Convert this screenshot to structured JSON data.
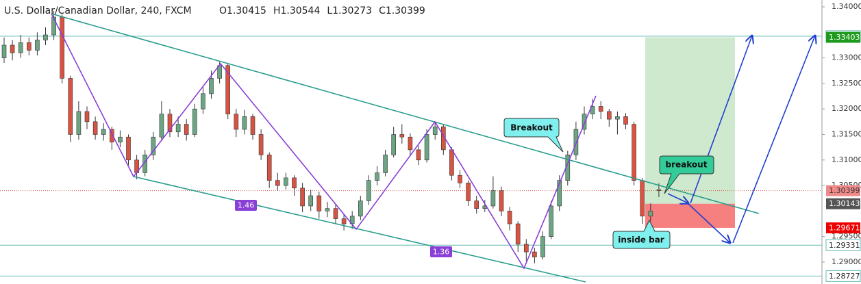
{
  "chart_data": {
    "type": "candlestick",
    "title": "U.S. Dollar/Canadian Dollar, 240, FXCM",
    "ohlc_prefixes": [
      "O",
      "H",
      "L",
      "C"
    ],
    "ylim": [
      1.28571,
      1.34134
    ],
    "yticks": [
      {
        "value": 1.34,
        "label": "1.34000"
      },
      {
        "value": 1.33,
        "label": "1.33000"
      },
      {
        "value": 1.325,
        "label": "1.32500"
      },
      {
        "value": 1.32,
        "label": "1.32000"
      },
      {
        "value": 1.315,
        "label": "1.31500"
      },
      {
        "value": 1.31,
        "label": "1.31000"
      },
      {
        "value": 1.305,
        "label": "1.30500"
      },
      {
        "value": 1.295,
        "label": "1.29500"
      },
      {
        "value": 1.29,
        "label": "1.29000"
      }
    ],
    "up_color": "#6ba583",
    "down_color": "#d75442",
    "series": [
      {
        "open": [
          1.33,
          1.3325,
          1.331,
          1.333,
          1.3315,
          1.3335,
          1.3345,
          1.338,
          1.326,
          1.315,
          1.3195,
          1.3175,
          1.315,
          1.316,
          1.3135,
          1.3145,
          1.31,
          1.3075,
          1.311,
          1.3145,
          1.319,
          1.3155,
          1.317,
          1.315,
          1.32,
          1.323,
          1.326,
          1.3285,
          1.319,
          1.316,
          1.3185,
          1.315,
          1.311,
          1.306,
          1.305,
          1.3065,
          1.3045,
          1.301,
          1.303,
          1.3,
          1.3005,
          1.2985,
          1.2975,
          1.299,
          1.302,
          1.306,
          1.3075,
          1.311,
          1.315,
          1.3145,
          1.312,
          1.31,
          1.315,
          1.3165,
          1.312,
          1.307,
          1.3055,
          1.302,
          1.3005,
          1.301,
          1.304,
          1.3,
          1.2975,
          1.2935,
          1.292,
          1.291,
          1.295,
          1.301,
          1.306,
          1.311,
          1.316,
          1.319,
          1.3205,
          1.3195,
          1.318,
          1.3185,
          1.317,
          1.306,
          1.299,
          1.30415
        ],
        "high": [
          1.334,
          1.3335,
          1.3345,
          1.334,
          1.335,
          1.336,
          1.3392,
          1.3385,
          1.3265,
          1.3215,
          1.3205,
          1.3185,
          1.3172,
          1.3165,
          1.3158,
          1.315,
          1.311,
          1.312,
          1.3155,
          1.3215,
          1.32,
          1.3185,
          1.318,
          1.321,
          1.3245,
          1.3275,
          1.3292,
          1.329,
          1.32,
          1.3198,
          1.319,
          1.316,
          1.3115,
          1.3075,
          1.3075,
          1.307,
          1.3055,
          1.3042,
          1.3038,
          1.3018,
          1.3012,
          1.2995,
          1.3,
          1.303,
          1.307,
          1.3088,
          1.312,
          1.3165,
          1.317,
          1.3152,
          1.3128,
          1.316,
          1.3175,
          1.317,
          1.3125,
          1.308,
          1.306,
          1.303,
          1.3022,
          1.3068,
          1.3048,
          1.3008,
          1.298,
          1.2945,
          1.2928,
          1.296,
          1.302,
          1.307,
          1.3118,
          1.3175,
          1.3205,
          1.322,
          1.3215,
          1.32,
          1.3195,
          1.3192,
          1.3175,
          1.3065,
          1.3015,
          1.30544
        ],
        "low": [
          1.329,
          1.3295,
          1.33,
          1.3305,
          1.3305,
          1.3325,
          1.3335,
          1.325,
          1.3135,
          1.314,
          1.316,
          1.314,
          1.3138,
          1.312,
          1.3125,
          1.309,
          1.3062,
          1.3068,
          1.31,
          1.314,
          1.3145,
          1.3145,
          1.3138,
          1.3145,
          1.319,
          1.322,
          1.325,
          1.318,
          1.3145,
          1.315,
          1.314,
          1.31,
          1.3045,
          1.304,
          1.3042,
          1.303,
          1.2998,
          1.3,
          1.2985,
          1.2988,
          1.2975,
          1.2962,
          1.2965,
          1.2982,
          1.3012,
          1.305,
          1.3068,
          1.3105,
          1.3132,
          1.311,
          1.309,
          1.3095,
          1.314,
          1.311,
          1.306,
          1.3045,
          1.301,
          1.2995,
          1.2998,
          1.3005,
          1.299,
          1.2962,
          1.292,
          1.2902,
          1.2898,
          1.2905,
          1.2945,
          1.3,
          1.305,
          1.31,
          1.315,
          1.318,
          1.318,
          1.3165,
          1.315,
          1.316,
          1.305,
          1.2975,
          1.298,
          1.30273
        ],
        "close": [
          1.3325,
          1.331,
          1.333,
          1.3315,
          1.3335,
          1.3345,
          1.338,
          1.326,
          1.315,
          1.3195,
          1.3175,
          1.315,
          1.316,
          1.3135,
          1.3145,
          1.31,
          1.3075,
          1.311,
          1.3145,
          1.319,
          1.3155,
          1.317,
          1.315,
          1.32,
          1.323,
          1.326,
          1.3285,
          1.319,
          1.316,
          1.3185,
          1.315,
          1.311,
          1.306,
          1.305,
          1.3065,
          1.3045,
          1.301,
          1.303,
          1.3,
          1.3005,
          1.2985,
          1.2975,
          1.299,
          1.302,
          1.306,
          1.3075,
          1.311,
          1.315,
          1.3145,
          1.312,
          1.31,
          1.315,
          1.3165,
          1.312,
          1.307,
          1.3055,
          1.302,
          1.3005,
          1.301,
          1.304,
          1.3,
          1.2975,
          1.2935,
          1.292,
          1.291,
          1.295,
          1.301,
          1.306,
          1.311,
          1.316,
          1.319,
          1.3205,
          1.3195,
          1.318,
          1.3185,
          1.317,
          1.306,
          1.299,
          1.3,
          1.30399
        ]
      }
    ],
    "horizontal_lines": [
      1.33425,
      1.29331,
      1.28727
    ],
    "line_color": "#5fb8b0",
    "position": {
      "target": {
        "value": 1.33403,
        "color": "#1e9b1e"
      },
      "entry": {
        "value": 1.30143,
        "color": "#555555"
      },
      "stop": {
        "value": 1.29671,
        "color": "#ee0000"
      }
    },
    "current_price_color": "#f08a8a",
    "annotations": [
      "Breakout",
      "breakout",
      "inside bar",
      "1.46",
      "1.36"
    ]
  }
}
